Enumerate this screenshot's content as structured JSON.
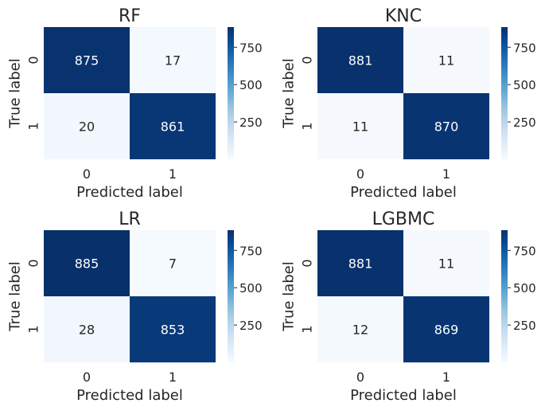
{
  "chart_data": [
    {
      "type": "heatmap",
      "title": "RF",
      "xlabel": "Predicted label",
      "ylabel": "True label",
      "x_categories": [
        "0",
        "1"
      ],
      "y_categories": [
        "0",
        "1"
      ],
      "values": [
        [
          875,
          17
        ],
        [
          20,
          861
        ]
      ],
      "colorbar": {
        "range": [
          0,
          885
        ],
        "ticks": [
          250,
          500,
          750
        ],
        "colormap": "Blues"
      }
    },
    {
      "type": "heatmap",
      "title": "KNC",
      "xlabel": "Predicted label",
      "ylabel": "True label",
      "x_categories": [
        "0",
        "1"
      ],
      "y_categories": [
        "0",
        "1"
      ],
      "values": [
        [
          881,
          11
        ],
        [
          11,
          870
        ]
      ],
      "colorbar": {
        "range": [
          0,
          885
        ],
        "ticks": [
          250,
          500,
          750
        ],
        "colormap": "Blues"
      }
    },
    {
      "type": "heatmap",
      "title": "LR",
      "xlabel": "Predicted label",
      "ylabel": "True label",
      "x_categories": [
        "0",
        "1"
      ],
      "y_categories": [
        "0",
        "1"
      ],
      "values": [
        [
          885,
          7
        ],
        [
          28,
          853
        ]
      ],
      "colorbar": {
        "range": [
          0,
          885
        ],
        "ticks": [
          250,
          500,
          750
        ],
        "colormap": "Blues"
      }
    },
    {
      "type": "heatmap",
      "title": "LGBMC",
      "xlabel": "Predicted label",
      "ylabel": "True label",
      "x_categories": [
        "0",
        "1"
      ],
      "y_categories": [
        "0",
        "1"
      ],
      "values": [
        [
          881,
          11
        ],
        [
          12,
          869
        ]
      ],
      "colorbar": {
        "range": [
          0,
          885
        ],
        "ticks": [
          250,
          500,
          750
        ],
        "colormap": "Blues"
      }
    }
  ],
  "colors": {
    "blues_light": "#f7fbff",
    "blues_dark": "#08306b",
    "text_dark": "#262626",
    "text_light": "#ffffff"
  }
}
